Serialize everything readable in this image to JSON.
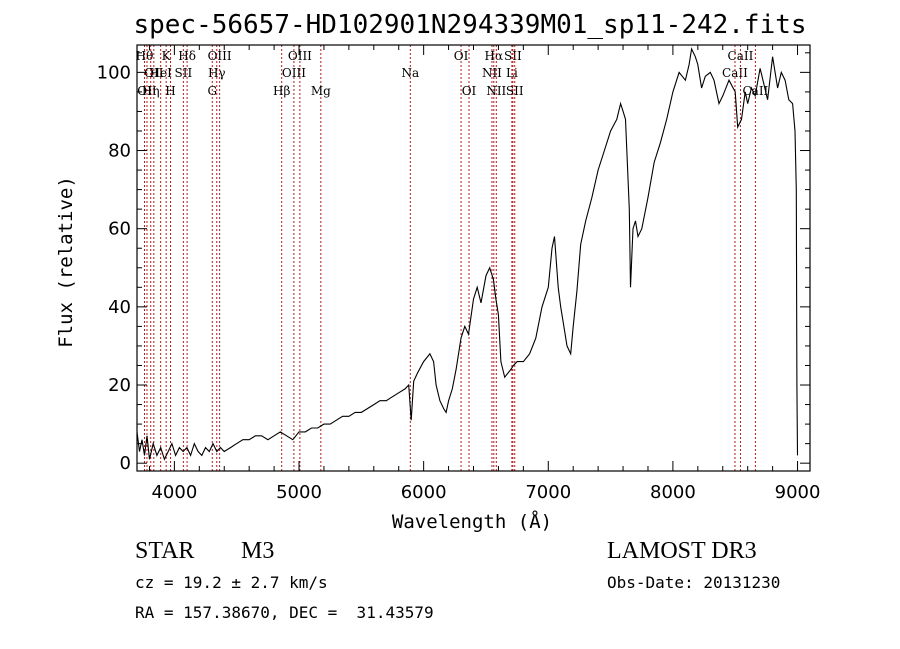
{
  "chart_data": {
    "type": "line",
    "title": "spec-56657-HD102901N294339M01_sp11-242.fits",
    "xlabel": "Wavelength (Å)",
    "ylabel": "Flux (relative)",
    "xlim": [
      3700,
      9100
    ],
    "ylim": [
      -2,
      107
    ],
    "xticks": [
      4000,
      5000,
      6000,
      7000,
      8000,
      9000
    ],
    "yticks": [
      0,
      20,
      40,
      60,
      80,
      100
    ],
    "grid": false,
    "spectrum": {
      "x": [
        3700,
        3720,
        3740,
        3760,
        3780,
        3800,
        3830,
        3860,
        3890,
        3920,
        3950,
        3980,
        4010,
        4040,
        4070,
        4100,
        4130,
        4160,
        4190,
        4220,
        4250,
        4280,
        4310,
        4340,
        4370,
        4400,
        4450,
        4500,
        4550,
        4600,
        4650,
        4700,
        4750,
        4800,
        4850,
        4900,
        4950,
        5000,
        5050,
        5100,
        5150,
        5200,
        5250,
        5300,
        5350,
        5400,
        5450,
        5500,
        5550,
        5600,
        5650,
        5700,
        5750,
        5800,
        5850,
        5880,
        5900,
        5920,
        5950,
        6000,
        6050,
        6080,
        6100,
        6130,
        6160,
        6180,
        6200,
        6230,
        6260,
        6300,
        6330,
        6360,
        6400,
        6430,
        6460,
        6500,
        6530,
        6560,
        6580,
        6600,
        6620,
        6650,
        6700,
        6720,
        6750,
        6800,
        6850,
        6900,
        6950,
        7000,
        7030,
        7050,
        7080,
        7100,
        7130,
        7150,
        7180,
        7200,
        7230,
        7260,
        7300,
        7350,
        7400,
        7450,
        7500,
        7550,
        7580,
        7600,
        7620,
        7650,
        7660,
        7680,
        7700,
        7720,
        7750,
        7800,
        7850,
        7900,
        7950,
        8000,
        8050,
        8100,
        8130,
        8150,
        8180,
        8200,
        8230,
        8260,
        8300,
        8330,
        8370,
        8400,
        8450,
        8500,
        8520,
        8550,
        8580,
        8600,
        8630,
        8660,
        8700,
        8730,
        8760,
        8800,
        8840,
        8870,
        8900,
        8930,
        8960,
        8980,
        8990,
        8995,
        9000
      ],
      "y": [
        8,
        3,
        6,
        2,
        7,
        1,
        5,
        2,
        4,
        1,
        3,
        5,
        2,
        4,
        3,
        4,
        2,
        5,
        3,
        2,
        4,
        3,
        5,
        3,
        4,
        3,
        4,
        5,
        6,
        6,
        7,
        7,
        6,
        7,
        8,
        7,
        6,
        8,
        8,
        9,
        9,
        10,
        10,
        11,
        12,
        12,
        13,
        13,
        14,
        15,
        16,
        16,
        17,
        18,
        19,
        20,
        11,
        21,
        23,
        26,
        28,
        26,
        20,
        16,
        14,
        13,
        16,
        19,
        24,
        32,
        35,
        33,
        42,
        45,
        41,
        48,
        50,
        47,
        42,
        38,
        26,
        22,
        24,
        25,
        26,
        26,
        28,
        32,
        40,
        45,
        55,
        58,
        45,
        40,
        34,
        30,
        28,
        35,
        44,
        56,
        62,
        68,
        75,
        80,
        85,
        88,
        92,
        90,
        88,
        65,
        45,
        60,
        62,
        58,
        60,
        68,
        77,
        82,
        88,
        95,
        100,
        98,
        102,
        106,
        104,
        102,
        96,
        99,
        100,
        98,
        92,
        94,
        98,
        95,
        86,
        88,
        95,
        92,
        96,
        94,
        101,
        97,
        93,
        104,
        96,
        100,
        98,
        93,
        92,
        85,
        70,
        20,
        2
      ]
    },
    "lines": [
      {
        "x": 3760,
        "label": "Hθ",
        "row": 0
      },
      {
        "x": 3780,
        "label": "OII",
        "row": 2
      },
      {
        "x": 3810,
        "label": "Hη",
        "row": 2
      },
      {
        "x": 3835,
        "label": "OII",
        "row": 1
      },
      {
        "x": 3890,
        "label": "HeI",
        "row": 1
      },
      {
        "x": 3934,
        "label": "K",
        "row": 0
      },
      {
        "x": 3969,
        "label": "H",
        "row": 2
      },
      {
        "x": 4072,
        "label": "SII",
        "row": 1
      },
      {
        "x": 4102,
        "label": "Hδ",
        "row": 0
      },
      {
        "x": 4304,
        "label": "G",
        "row": 2
      },
      {
        "x": 4340,
        "label": "Hγ",
        "row": 1
      },
      {
        "x": 4363,
        "label": "OIII",
        "row": 0
      },
      {
        "x": 4861,
        "label": "Hβ",
        "row": 2
      },
      {
        "x": 4959,
        "label": "OIII",
        "row": 1
      },
      {
        "x": 5007,
        "label": "OIII",
        "row": 0
      },
      {
        "x": 5175,
        "label": "Mg",
        "row": 2
      },
      {
        "x": 5893,
        "label": "Na",
        "row": 1
      },
      {
        "x": 6300,
        "label": "OI",
        "row": 0
      },
      {
        "x": 6364,
        "label": "OI",
        "row": 2
      },
      {
        "x": 6548,
        "label": "NII",
        "row": 1
      },
      {
        "x": 6563,
        "label": "Hα",
        "row": 0
      },
      {
        "x": 6583,
        "label": "NII",
        "row": 2
      },
      {
        "x": 6708,
        "label": "Li",
        "row": 1
      },
      {
        "x": 6716,
        "label": "SII",
        "row": 0
      },
      {
        "x": 6731,
        "label": "SII",
        "row": 2
      },
      {
        "x": 8498,
        "label": "CaII",
        "row": 1
      },
      {
        "x": 8542,
        "label": "CaII",
        "row": 0
      },
      {
        "x": 8662,
        "label": "CaII",
        "row": 2
      }
    ]
  },
  "info": {
    "class": "STAR",
    "subclass": "M3",
    "survey": "LAMOST DR3",
    "cz": "cz = 19.2 ± 2.7 km/s",
    "obs_date": "Obs-Date: 20131230",
    "coords": "RA = 157.38670, DEC =  31.43579"
  }
}
